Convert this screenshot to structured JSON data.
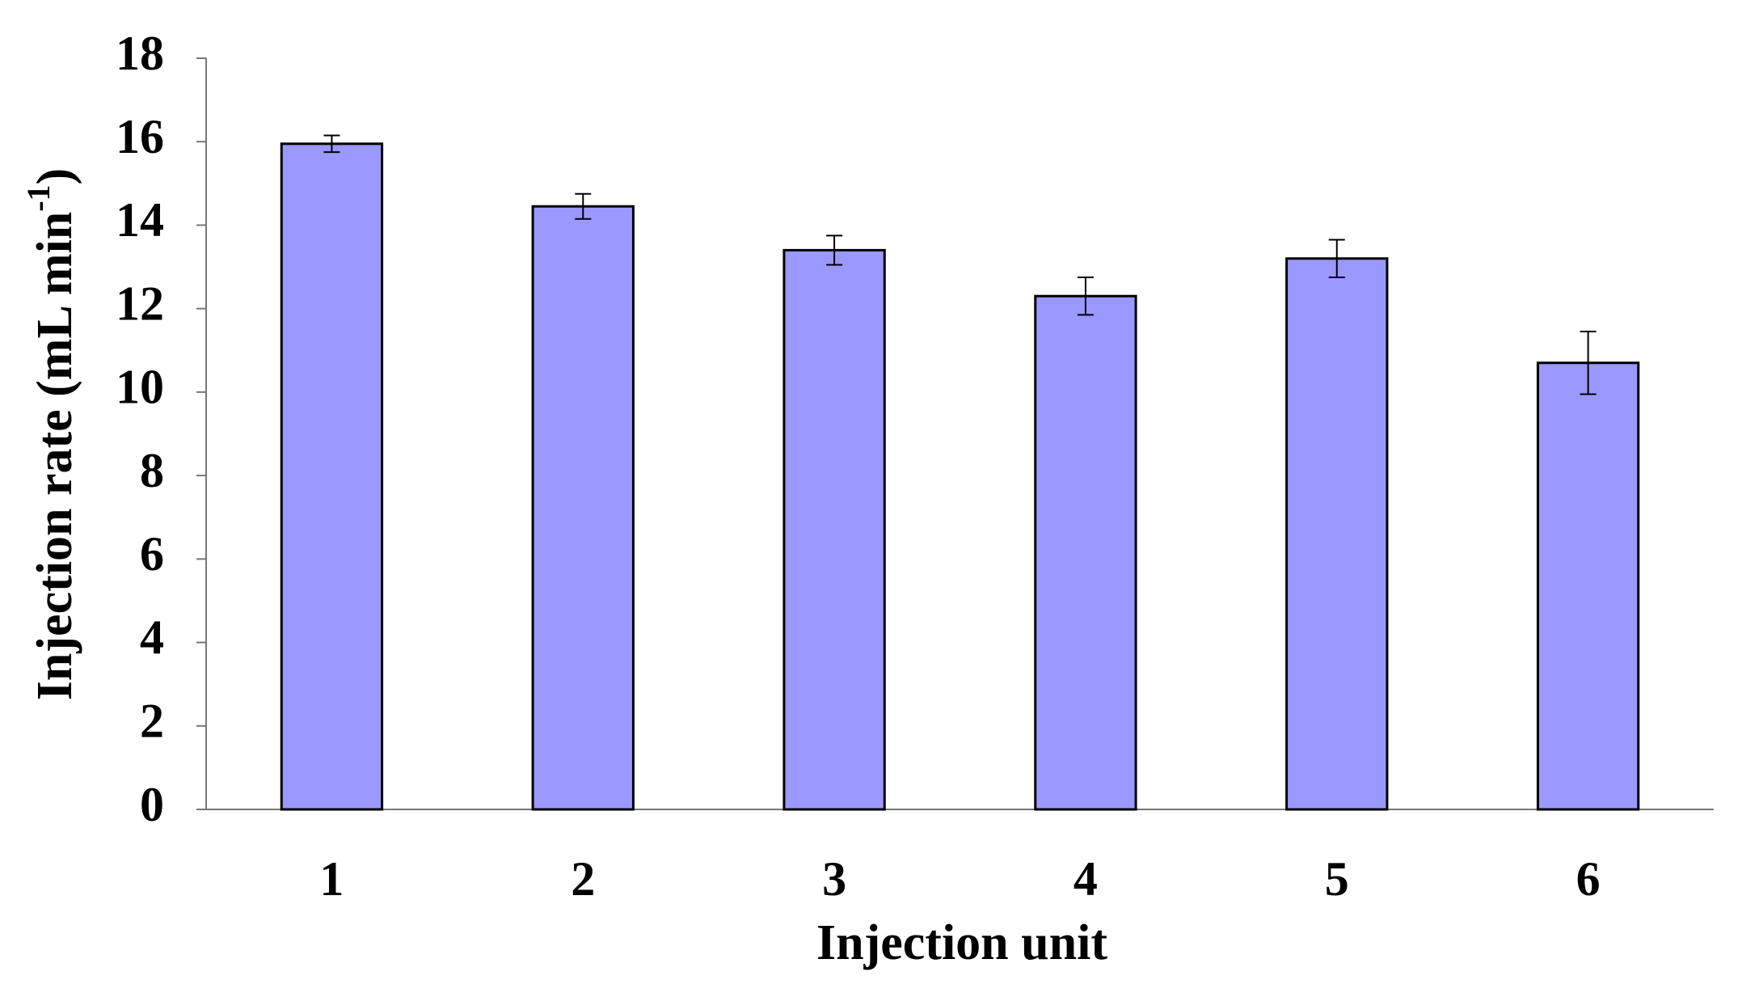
{
  "chart_data": {
    "type": "bar",
    "xlabel": "Injection unit",
    "ylabel": {
      "text": "Injection rate (mL min",
      "superscript": "-1",
      "suffix": ")"
    },
    "categories": [
      "1",
      "2",
      "3",
      "4",
      "5",
      "6"
    ],
    "values": [
      15.95,
      14.45,
      13.4,
      12.3,
      13.2,
      10.7
    ],
    "errors": [
      0.2,
      0.3,
      0.35,
      0.45,
      0.45,
      0.75
    ],
    "color": "#9999ff",
    "ylim": [
      0,
      18
    ],
    "yticks": [
      0,
      2,
      4,
      6,
      8,
      10,
      12,
      14,
      16,
      18
    ],
    "grid": false
  }
}
